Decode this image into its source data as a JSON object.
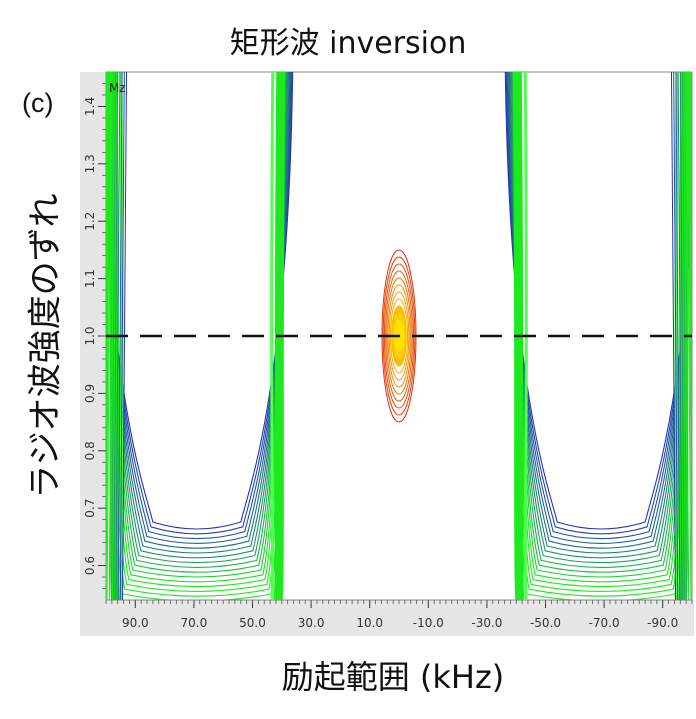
{
  "chart_data": {
    "type": "contour",
    "title": "矩形波 inversion",
    "panel_label": "(c)",
    "corner_label": "Mz",
    "xlabel": "励起範囲 (kHz)",
    "ylabel": "ラジオ波強度のずれ",
    "xlim": [
      100,
      -100
    ],
    "ylim": [
      0.54,
      1.46
    ],
    "x_ticks": [
      "90.0",
      "70.0",
      "50.0",
      "30.0",
      "10.0",
      "-10.0",
      "-30.0",
      "-50.0",
      "-70.0",
      "-90.0"
    ],
    "y_ticks": [
      "0.6",
      "0.7",
      "0.8",
      "0.9",
      "1.0",
      "1.1",
      "1.2",
      "1.3",
      "1.4"
    ],
    "reference_line_y": 1.0,
    "series": [
      {
        "color": "#2233bb",
        "description": "inversion bands"
      },
      {
        "color": "#00dd00",
        "description": "null (Mz≈0) contours"
      },
      {
        "color": "#e8a000",
        "description": "central residual peak at 0 kHz, 0.85–1.15"
      }
    ],
    "colors": {
      "blue": "#2233bb",
      "green": "#1ee81e",
      "red": "#e03010",
      "yellow": "#ffe000"
    }
  }
}
